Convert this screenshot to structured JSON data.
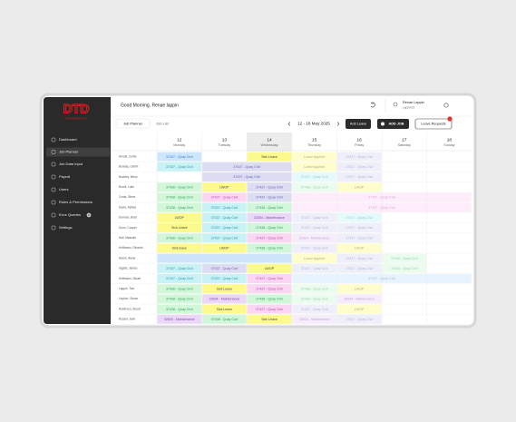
{
  "header": {
    "greeting": "Good Morning, Renae lappin",
    "user_name": "Renae Lappin",
    "user_id": "Lappin13"
  },
  "sidebar": {
    "logo": "DTD",
    "logo_sub": "ENGINEERING CO",
    "menu": [
      "Dashboard",
      "Job Planner",
      "Job Data Input",
      "Payroll",
      "Users",
      "Roles & Permissions",
      "Error Queries",
      "Settings"
    ],
    "badge": "1"
  },
  "toolbar": {
    "tabs": [
      "Job Planner",
      "Job List"
    ],
    "date_range": "12 - 18 May 2025",
    "buttons": [
      "Add Leave",
      "ADD JOB",
      "Leave Requests"
    ]
  },
  "planner": {
    "days": [
      {
        "date": "12",
        "weekday": "Monday"
      },
      {
        "date": "13",
        "weekday": "Tuesday"
      },
      {
        "date": "14",
        "weekday": "Wednesday"
      },
      {
        "date": "15",
        "weekday": "Thursday"
      },
      {
        "date": "16",
        "weekday": "Friday"
      },
      {
        "date": "17",
        "weekday": "Saturday"
      },
      {
        "date": "18",
        "weekday": "Sunday"
      }
    ],
    "rows": [
      {
        "name": "Arnold, Curtis",
        "cells": [
          {
            "text": "37437 - Quay Civil",
            "style": "blue"
          },
          null,
          {
            "text": "Sick Leave",
            "style": "yellow"
          },
          {
            "text": "Leave Applied",
            "style": "yellow"
          },
          {
            "text": "37437 - Quay Civil",
            "style": "lavender"
          },
          null,
          null
        ]
      },
      {
        "name": "Bunday, Gerhrt",
        "cells": [
          {
            "text": "37437 - Quay Civil",
            "style": "cyan"
          },
          {
            "text": "37437 - Quay Civil",
            "style": "lavender",
            "span": 2
          },
          null,
          {
            "text": "Leave Applied",
            "style": "yellow"
          },
          {
            "text": "37437 - Quay Civil",
            "style": "lavender"
          },
          null,
          null
        ]
      },
      {
        "name": "Buckley, Minor",
        "cells": [
          null,
          {
            "text": "37437 - Quay Civil",
            "style": "lavender",
            "span": 2
          },
          null,
          {
            "text": "37437 - Quay Civil",
            "style": "cyan"
          },
          {
            "text": "37437 - Quay Civil",
            "style": "lavender"
          },
          null,
          null
        ]
      },
      {
        "name": "Burrill, Luke",
        "cells": [
          {
            "text": "37438 - Quay Civil",
            "style": "green"
          },
          {
            "text": "LWOP",
            "style": "yellow"
          },
          {
            "text": "37437 - Quay Civil",
            "style": "lavender"
          },
          {
            "text": "37438 - Quay Civil",
            "style": "green"
          },
          {
            "text": "LWOP",
            "style": "yellow"
          },
          null,
          null
        ]
      },
      {
        "name": "Costa, Steve",
        "cells": [
          {
            "text": "37438 - Quay Civil",
            "style": "green"
          },
          {
            "text": "37437 - Quay Civil",
            "style": "pink"
          },
          {
            "text": "37437 - Quay Civil",
            "style": "lavender"
          },
          {
            "text": "37437 - Quay Civil",
            "style": "pink",
            "span": 4
          },
          null,
          null,
          null
        ]
      },
      {
        "name": "Davis, Ashlee",
        "cells": [
          {
            "text": "37438 - Quay Civil",
            "style": "green"
          },
          {
            "text": "37437 - Quay Civil",
            "style": "cyan"
          },
          {
            "text": "37438 - Quay Civil",
            "style": "green"
          },
          {
            "text": "37437 - Quay Civil",
            "style": "pink",
            "span": 4
          },
          null,
          null,
          null
        ]
      },
      {
        "name": "Dorman, Brad",
        "cells": [
          {
            "text": "LWOP",
            "style": "yellow"
          },
          {
            "text": "37437 - Quay Civil",
            "style": "cyan"
          },
          {
            "text": "32834 - Maintenance",
            "style": "purple"
          },
          {
            "text": "37437 - Quay Civil",
            "style": "lavender"
          },
          {
            "text": "37437 - Quay Civil",
            "style": "cyan"
          },
          null,
          null
        ]
      },
      {
        "name": "Dunn, Cooper",
        "cells": [
          {
            "text": "Sick Leave",
            "style": "yellow"
          },
          {
            "text": "37437 - Quay Civil",
            "style": "cyan"
          },
          {
            "text": "37438 - Quay Civil",
            "style": "green"
          },
          {
            "text": "37437 - Quay Civil",
            "style": "lavender"
          },
          {
            "text": "37437 - Quay Civil",
            "style": "lavender"
          },
          null,
          null
        ]
      },
      {
        "name": "Hall, Malcolm",
        "cells": [
          {
            "text": "37438 - Quay Civil",
            "style": "green"
          },
          {
            "text": "37437 - Quay Civil",
            "style": "cyan"
          },
          {
            "text": "37437 - Quay Civil",
            "style": "pink"
          },
          {
            "text": "32834 - Maintenance",
            "style": "purple"
          },
          {
            "text": "37437 - Quay Civil",
            "style": "lavender"
          },
          null,
          null
        ]
      },
      {
        "name": "Hoffmann, Ricardo",
        "cells": [
          {
            "text": "Sick leave",
            "style": "yellow"
          },
          {
            "text": "LWOP",
            "style": "yellow"
          },
          {
            "text": "37438 - Quay Civil",
            "style": "green"
          },
          {
            "text": "37437 - Quay Civil",
            "style": "lavender"
          },
          {
            "text": "LWOP",
            "style": "yellow"
          },
          null,
          null
        ]
      },
      {
        "name": "Harris, Alana",
        "cells": [
          {
            "style": "blue",
            "span": 3
          },
          null,
          null,
          {
            "text": "Leave Applied",
            "style": "yellow"
          },
          {
            "text": "37437 - Quay Civil",
            "style": "lavender"
          },
          {
            "text": "37438 - Quay Civil",
            "style": "green"
          },
          null
        ]
      },
      {
        "name": "Ingalls, James",
        "cells": [
          {
            "text": "37437 - Quay Civil",
            "style": "cyan"
          },
          {
            "text": "37437 - Quay Civil",
            "style": "lavender"
          },
          {
            "text": "LWOP",
            "style": "yellow"
          },
          {
            "text": "37437 - Quay Civil",
            "style": "lavender"
          },
          {
            "text": "37437 - Quay Civil",
            "style": "lavender"
          },
          {
            "text": "37438 - Quay Civil",
            "style": "green"
          },
          null
        ]
      },
      {
        "name": "Hoffmann, Stuart",
        "cells": [
          {
            "text": "37437 - Quay Civil",
            "style": "cyan"
          },
          {
            "text": "37437 - Quay Civil",
            "style": "cyan"
          },
          {
            "text": "37437 - Quay Civil",
            "style": "pink"
          },
          {
            "text": "37437 - Quay Civil",
            "style": "blue",
            "span": 4
          },
          null,
          null,
          null
        ]
      },
      {
        "name": "Lappin, Tom",
        "cells": [
          {
            "text": "37438 - Quay Civil",
            "style": "green"
          },
          {
            "text": "Sick Leave",
            "style": "yellow"
          },
          {
            "text": "37437 - Quay Civil",
            "style": "pink"
          },
          {
            "text": "37438 - Quay Civil",
            "style": "green"
          },
          {
            "text": "LWOP",
            "style": "yellow"
          },
          null,
          null
        ]
      },
      {
        "name": "Leydon, Simon",
        "cells": [
          {
            "text": "37438 - Quay Civil",
            "style": "green"
          },
          {
            "text": "32834 - Maintenance",
            "style": "purple"
          },
          {
            "text": "37438 - Quay Civil",
            "style": "green"
          },
          {
            "text": "37438 - Quay Civil",
            "style": "green"
          },
          {
            "text": "32834 - Maintenance",
            "style": "purple"
          },
          null,
          null
        ]
      },
      {
        "name": "Robinson, Stuart",
        "cells": [
          {
            "text": "37438 - Quay Civil",
            "style": "green"
          },
          {
            "text": "Sick Leave",
            "style": "yellow"
          },
          {
            "text": "37437 - Quay Civil",
            "style": "pink"
          },
          {
            "text": "37437 - Quay Civil",
            "style": "lavender"
          },
          {
            "text": "LWOP",
            "style": "yellow"
          },
          null,
          null
        ]
      },
      {
        "name": "Rosser, Sam",
        "cells": [
          {
            "text": "32834 - Maintenance",
            "style": "purple"
          },
          {
            "text": "37438 - Quay Civil",
            "style": "green"
          },
          {
            "text": "Sick Leave",
            "style": "yellow"
          },
          {
            "text": "32834 - Maintenance",
            "style": "purple"
          },
          {
            "text": "37437 - Quay Civil",
            "style": "lavender"
          },
          null,
          null
        ]
      }
    ]
  }
}
